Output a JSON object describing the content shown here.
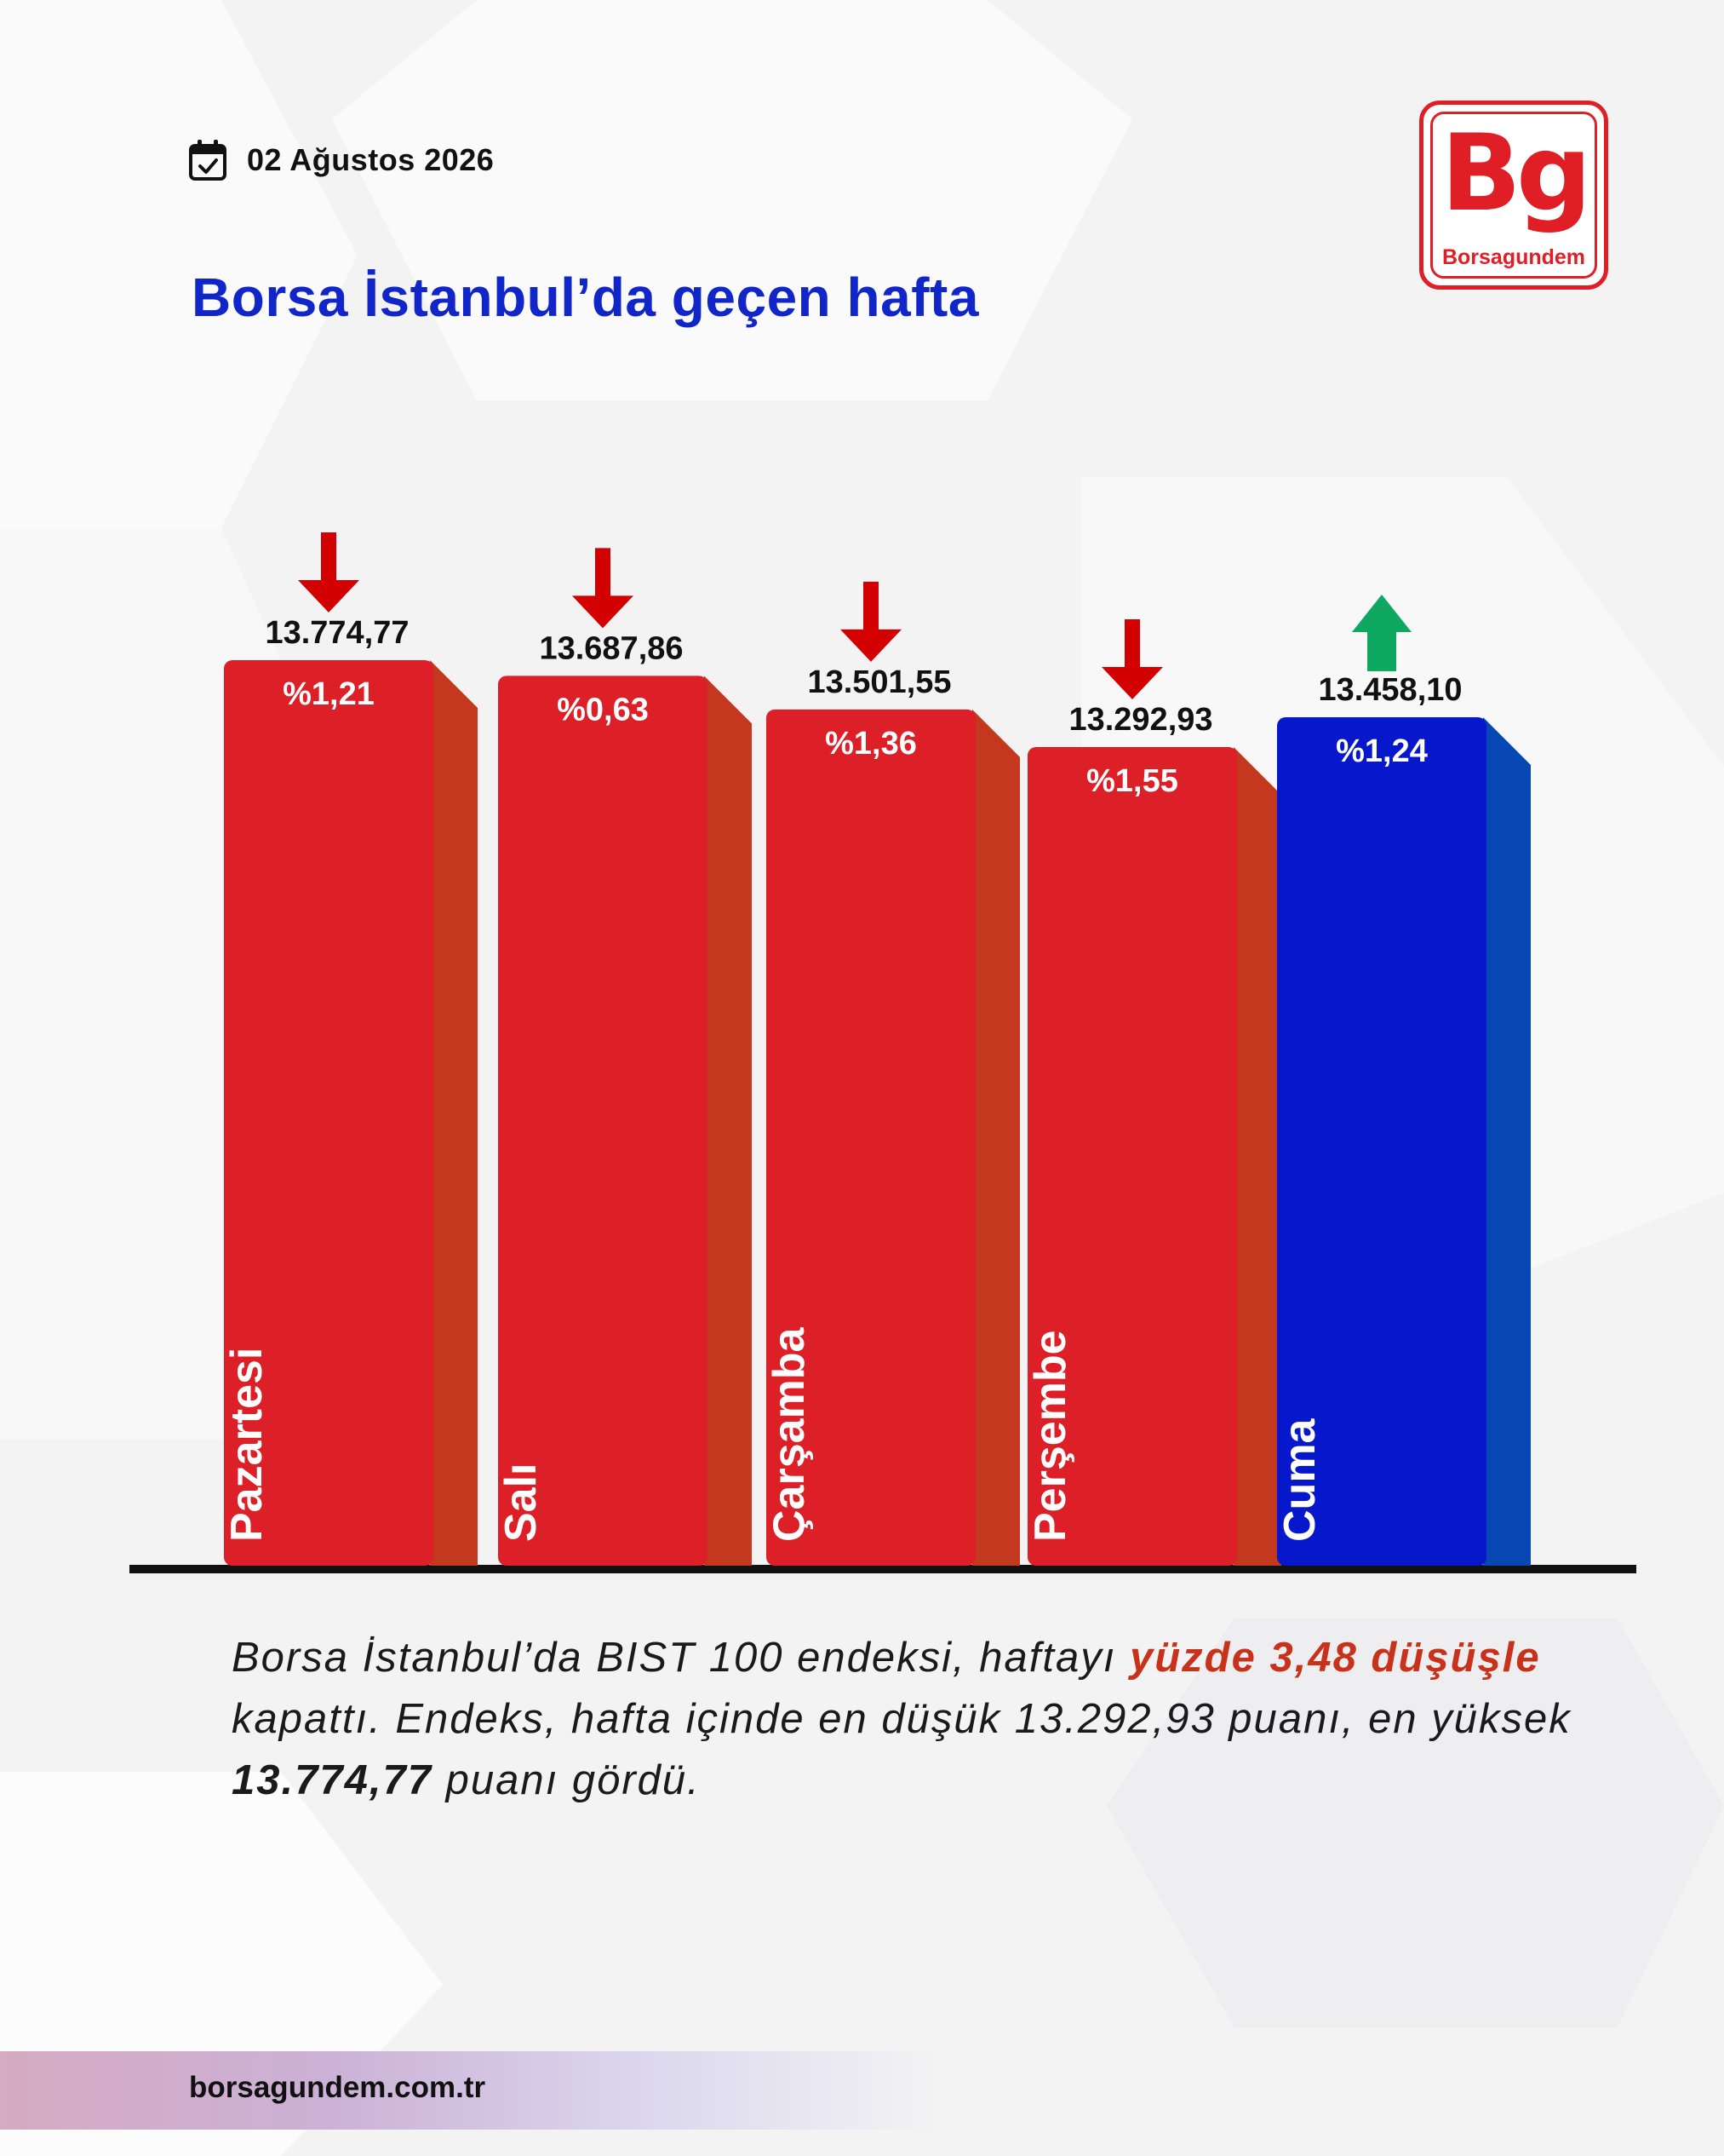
{
  "header": {
    "date": "02 Ağustos 2026",
    "title": "Borsa İstanbul’da geçen hafta"
  },
  "logo": {
    "letters": "Bg",
    "brand": "Borsagundem"
  },
  "colors": {
    "title": "#1026c8",
    "down": "#dd1f27",
    "down_side": "#c3381f",
    "up": "#0717cc",
    "up_side": "#0747b4",
    "down_arrow": "#d20000",
    "up_arrow": "#0fa860",
    "highlight": "#c8321b"
  },
  "chart_data": {
    "type": "bar",
    "categories": [
      "Pazartesi",
      "Salı",
      "Çarşamba",
      "Perşembe",
      "Cuma"
    ],
    "values": [
      13774.77,
      13687.86,
      13501.55,
      13292.93,
      13458.1
    ],
    "value_labels": [
      "13.774,77",
      "13.687,86",
      "13.501,55",
      "13.292,93",
      "13.458,10"
    ],
    "change_labels": [
      "%1,21",
      "%0,63",
      "%1,36",
      "%1,55",
      "%1,24"
    ],
    "direction": [
      "down",
      "down",
      "down",
      "down",
      "up"
    ],
    "title": "Borsa İstanbul’da geçen hafta",
    "xlabel": "",
    "ylabel": "",
    "grid": false
  },
  "summary": {
    "part1": "Borsa İstanbul’da BIST 100 endeksi, haftayı ",
    "highlight": "yüzde 3,48 düşüşle",
    "part2": " kapattı. Endeks, hafta içinde en düşük 13.292,93 puanı, en yüksek ",
    "bold_value": "13.774,77",
    "part3": " puanı gördü."
  },
  "footer": {
    "url": "borsagundem.com.tr"
  }
}
